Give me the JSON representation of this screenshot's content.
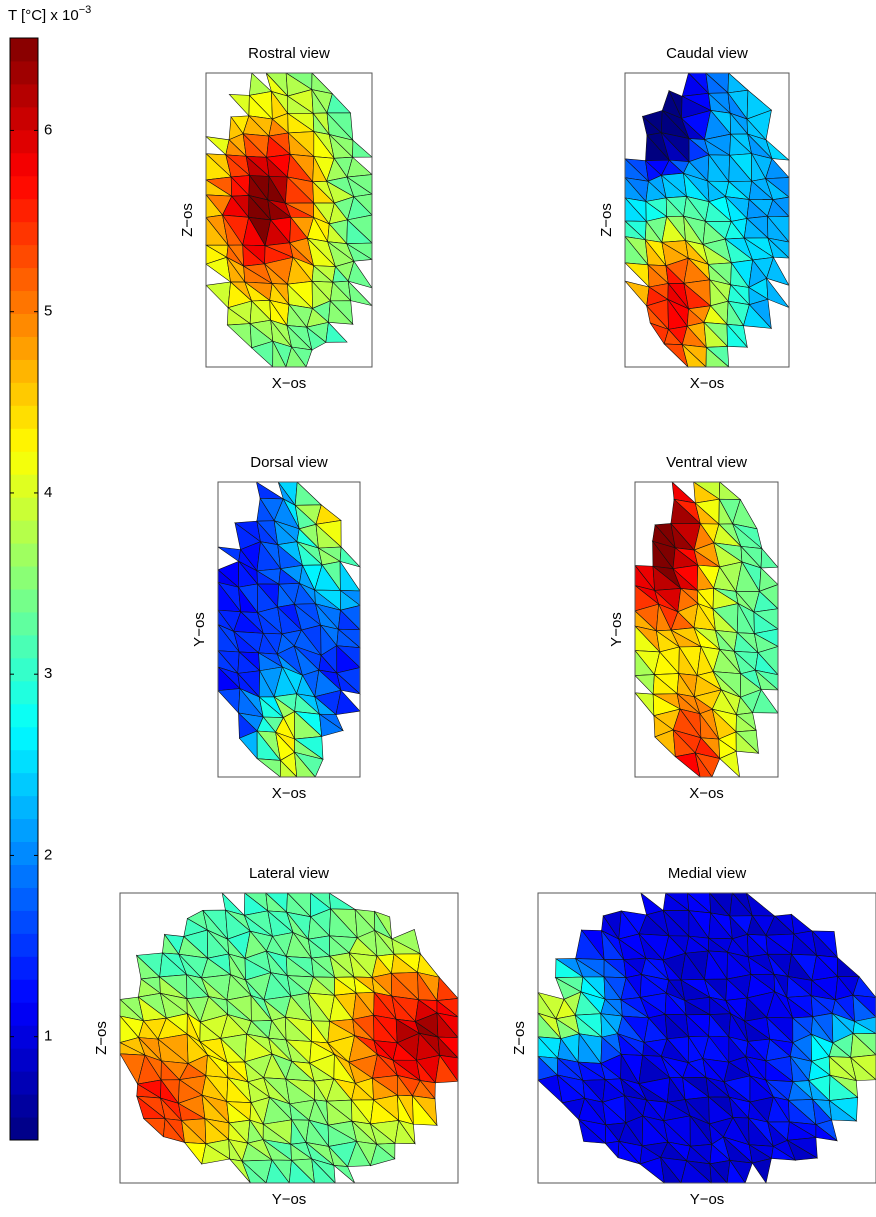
{
  "chart_data": {
    "type": "colorbar-figure",
    "colorbar": {
      "label": "T [°C] x 10",
      "label_exponent": "−3",
      "lim": [
        0.43,
        6.51
      ],
      "ticks": [
        1,
        2,
        3,
        4,
        5,
        6
      ]
    },
    "panels": [
      {
        "title": "Rostral view",
        "xlabel": "X−os",
        "ylabel": "Z−os"
      },
      {
        "title": "Caudal view",
        "xlabel": "X−os",
        "ylabel": "Z−os"
      },
      {
        "title": "Dorsal view",
        "xlabel": "X−os",
        "ylabel": "Y−os"
      },
      {
        "title": "Ventral view",
        "xlabel": "X−os",
        "ylabel": "Y−os"
      },
      {
        "title": "Lateral view",
        "xlabel": "Y−os",
        "ylabel": "Z−os"
      },
      {
        "title": "Medial view",
        "xlabel": "Y−os",
        "ylabel": "Z−os"
      }
    ]
  }
}
